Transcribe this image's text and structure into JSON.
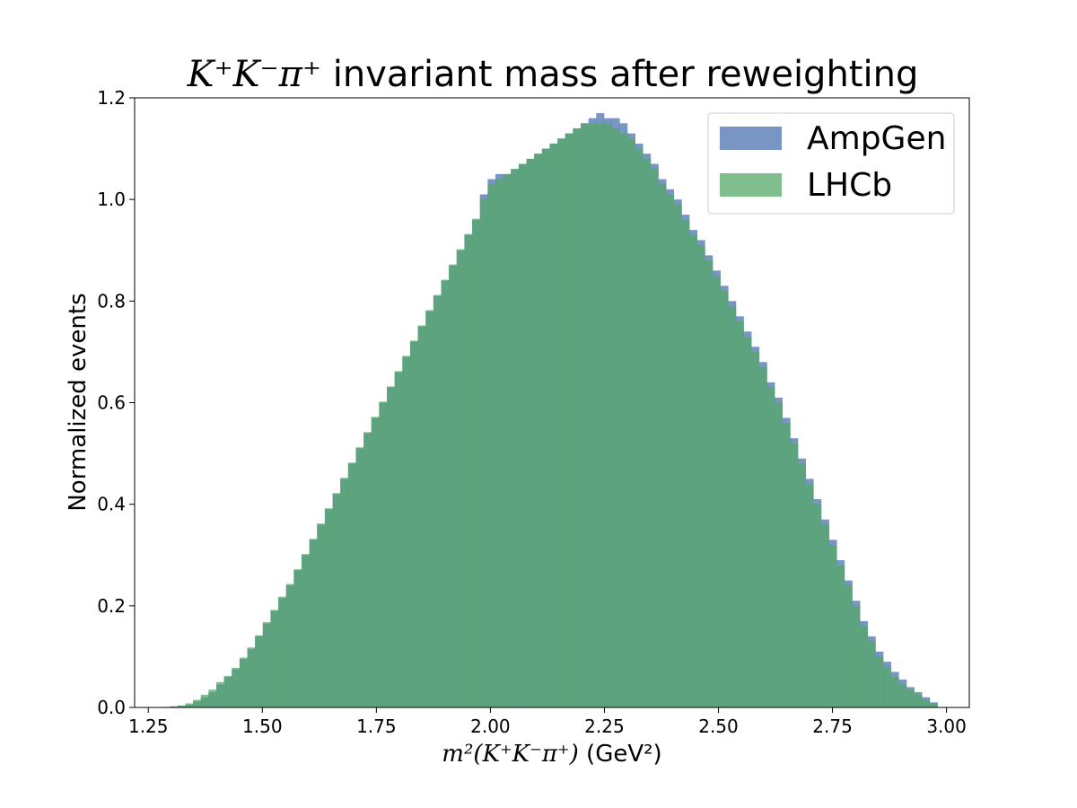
{
  "chart_data": {
    "type": "histogram",
    "title": {
      "math": "K⁺K⁻π⁺",
      "text": " invariant mass after reweighting"
    },
    "xlabel": {
      "math": "m²(K⁺K⁻π⁺)",
      "text": " (GeV²)"
    },
    "ylabel": "Normalized events",
    "xlim": [
      1.22,
      3.05
    ],
    "ylim": [
      0.0,
      1.2
    ],
    "xticks": [
      "1.25",
      "1.50",
      "1.75",
      "2.00",
      "2.25",
      "2.50",
      "2.75",
      "3.00"
    ],
    "yticks": [
      "0.0",
      "0.2",
      "0.4",
      "0.6",
      "0.8",
      "1.0",
      "1.2"
    ],
    "grid": false,
    "legend_position": "top-right",
    "bins": {
      "start": 1.28,
      "end": 2.98,
      "count": 100
    },
    "series": [
      {
        "name": "AmpGen",
        "color": "#4c72b0",
        "opacity": 0.75,
        "values": [
          0.001,
          0.002,
          0.003,
          0.005,
          0.012,
          0.02,
          0.03,
          0.045,
          0.06,
          0.075,
          0.095,
          0.115,
          0.14,
          0.165,
          0.19,
          0.215,
          0.24,
          0.27,
          0.3,
          0.33,
          0.36,
          0.39,
          0.42,
          0.45,
          0.48,
          0.51,
          0.54,
          0.57,
          0.6,
          0.63,
          0.66,
          0.69,
          0.72,
          0.75,
          0.78,
          0.81,
          0.84,
          0.87,
          0.9,
          0.93,
          0.96,
          1.01,
          1.04,
          1.05,
          1.05,
          1.06,
          1.07,
          1.08,
          1.09,
          1.1,
          1.11,
          1.12,
          1.13,
          1.14,
          1.15,
          1.16,
          1.17,
          1.16,
          1.16,
          1.15,
          1.13,
          1.11,
          1.09,
          1.07,
          1.04,
          1.02,
          1.0,
          0.97,
          0.94,
          0.92,
          0.89,
          0.86,
          0.83,
          0.8,
          0.77,
          0.74,
          0.71,
          0.68,
          0.64,
          0.61,
          0.57,
          0.53,
          0.49,
          0.45,
          0.41,
          0.37,
          0.33,
          0.29,
          0.25,
          0.21,
          0.17,
          0.14,
          0.11,
          0.09,
          0.07,
          0.055,
          0.04,
          0.03,
          0.02,
          0.01
        ]
      },
      {
        "name": "LHCb",
        "color": "#55a868",
        "opacity": 0.75,
        "values": [
          0.001,
          0.002,
          0.004,
          0.008,
          0.015,
          0.025,
          0.035,
          0.05,
          0.062,
          0.078,
          0.098,
          0.118,
          0.142,
          0.168,
          0.192,
          0.218,
          0.243,
          0.272,
          0.302,
          0.332,
          0.362,
          0.392,
          0.422,
          0.452,
          0.482,
          0.512,
          0.542,
          0.572,
          0.602,
          0.632,
          0.662,
          0.692,
          0.722,
          0.752,
          0.782,
          0.812,
          0.842,
          0.872,
          0.902,
          0.932,
          0.962,
          1.0,
          1.03,
          1.04,
          1.05,
          1.06,
          1.07,
          1.08,
          1.09,
          1.1,
          1.11,
          1.12,
          1.13,
          1.14,
          1.15,
          1.15,
          1.15,
          1.15,
          1.14,
          1.13,
          1.12,
          1.1,
          1.08,
          1.06,
          1.03,
          1.01,
          0.99,
          0.96,
          0.93,
          0.91,
          0.88,
          0.85,
          0.82,
          0.79,
          0.76,
          0.73,
          0.7,
          0.67,
          0.63,
          0.6,
          0.56,
          0.52,
          0.48,
          0.44,
          0.4,
          0.36,
          0.32,
          0.28,
          0.24,
          0.2,
          0.16,
          0.13,
          0.1,
          0.08,
          0.06,
          0.045,
          0.035,
          0.025,
          0.015,
          0.008
        ]
      }
    ]
  }
}
